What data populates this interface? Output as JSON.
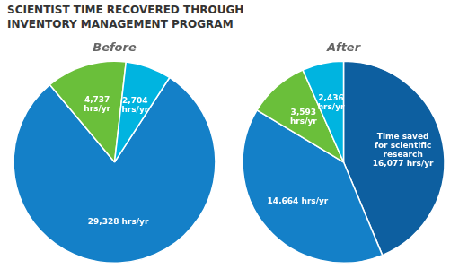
{
  "title": "SCIENTIST TIME RECOVERED THROUGH\nINVENTORY MANAGEMENT PROGRAM",
  "chart_data": [
    {
      "type": "pie",
      "title": "Before",
      "values": [
        29328,
        4737,
        2704
      ],
      "value_labels": [
        "29,328 hrs/yr",
        "4,737\nhrs/yr",
        "2,704\nhrs/yr"
      ],
      "colors": [
        "#1480c8",
        "#6abf3a",
        "#00b4e0"
      ],
      "data_labels": true
    },
    {
      "type": "pie",
      "title": "After",
      "values": [
        16077,
        14664,
        3593,
        2436
      ],
      "value_labels": [
        "Time saved\nfor scientific\nresearch\n16,077 hrs/yr",
        "14,664 hrs/yr",
        "3,593\nhrs/yr",
        "2,436\nhrs/yr"
      ],
      "colors": [
        "#0d5fa0",
        "#1480c8",
        "#6abf3a",
        "#00b4e0"
      ],
      "data_labels": true
    }
  ]
}
